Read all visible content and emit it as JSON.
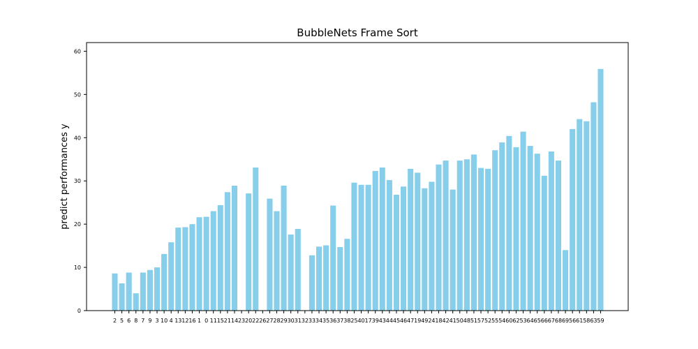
{
  "chart_data": {
    "type": "bar",
    "title": "BubbleNets Frame Sort",
    "xlabel": "",
    "ylabel": "predict performances y",
    "ylim": [
      0,
      62
    ],
    "yticks": [
      0,
      10,
      20,
      30,
      40,
      50,
      60
    ],
    "grid": false,
    "legend": "none",
    "bar_color": "#87ceeb",
    "categories": [
      "2",
      "5",
      "6",
      "8",
      "7",
      "9",
      "3",
      "10",
      "4",
      "13",
      "12",
      "16",
      "1",
      "0",
      "11",
      "15",
      "21",
      "14",
      "23",
      "20",
      "22",
      "26",
      "27",
      "28",
      "29",
      "30",
      "31",
      "32",
      "33",
      "34",
      "35",
      "36",
      "37",
      "38",
      "25",
      "40",
      "17",
      "39",
      "43",
      "44",
      "45",
      "46",
      "47",
      "19",
      "49",
      "24",
      "18",
      "42",
      "41",
      "50",
      "48",
      "51",
      "57",
      "52",
      "55",
      "54",
      "60",
      "62",
      "53",
      "64",
      "65",
      "66",
      "67",
      "68",
      "69",
      "56",
      "61",
      "58",
      "63",
      "59"
    ],
    "values": [
      8.6,
      6.3,
      8.8,
      4.0,
      8.8,
      9.4,
      10.0,
      13.1,
      15.8,
      19.2,
      19.3,
      20.0,
      21.6,
      21.7,
      23.0,
      24.4,
      27.4,
      28.9,
      0,
      27.1,
      33.1,
      0,
      25.9,
      23.0,
      28.9,
      17.6,
      18.9,
      0,
      12.8,
      14.8,
      15.1,
      24.3,
      14.7,
      16.6,
      29.6,
      29.1,
      29.1,
      32.3,
      33.1,
      30.2,
      26.8,
      28.7,
      32.8,
      31.9,
      28.3,
      29.8,
      33.8,
      34.7,
      28.0,
      34.7,
      35.0,
      36.1,
      33.0,
      32.8,
      37.1,
      38.9,
      40.4,
      37.8,
      41.4,
      38.1,
      36.3,
      31.2,
      36.8,
      34.7,
      14.0,
      42.0,
      44.3,
      43.8,
      48.2,
      55.9
    ]
  }
}
